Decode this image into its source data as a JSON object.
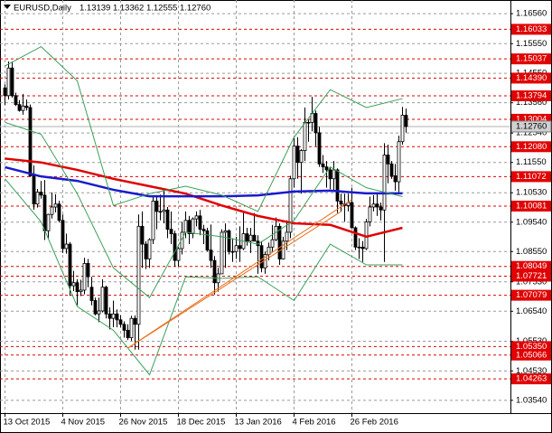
{
  "chart_data": {
    "type": "candlestick",
    "title": "EURUSD,Daily",
    "subtitle": "1.13139 1.13362 1.12555 1.12760",
    "categories": [
      "13 Oct 2015",
      null,
      null,
      null,
      null,
      null,
      null,
      null,
      null,
      null,
      null,
      null,
      null,
      null,
      null,
      null,
      "4 Nov 2015",
      null,
      null,
      null,
      null,
      null,
      null,
      null,
      null,
      null,
      null,
      null,
      null,
      null,
      null,
      null,
      "26 Nov 2015",
      null,
      null,
      null,
      null,
      null,
      null,
      null,
      null,
      null,
      null,
      null,
      null,
      null,
      null,
      null,
      "18 Dec 2015",
      null,
      null,
      null,
      null,
      null,
      null,
      null,
      null,
      null,
      null,
      null,
      null,
      null,
      null,
      null,
      "13 Jan 2016",
      null,
      null,
      null,
      null,
      null,
      null,
      null,
      null,
      null,
      null,
      null,
      null,
      null,
      null,
      null,
      "4 Feb 2016",
      null,
      null,
      null,
      null,
      null,
      null,
      null,
      null,
      null,
      null,
      null,
      null,
      null,
      null,
      null,
      "26 Feb 2016",
      null,
      null,
      null,
      null,
      null,
      null,
      null,
      null,
      null,
      null,
      null,
      null,
      null,
      null,
      null
    ],
    "open": [
      1.1406,
      1.138,
      1.1473,
      1.138,
      1.135,
      1.133,
      1.1345,
      1.134,
      1.111,
      1.1015,
      1.1055,
      1.1045,
      1.0925,
      1.098,
      1.1005,
      1.1015,
      1.096,
      1.0865,
      1.088,
      1.074,
      1.075,
      1.072,
      1.0725,
      1.0815,
      1.0735,
      1.069,
      1.0645,
      1.0655,
      1.0735,
      1.0645,
      1.063,
      1.0645,
      1.0625,
      1.061,
      1.059,
      1.0565,
      1.063,
      1.061,
      1.094,
      1.088,
      1.083,
      1.0895,
      1.1025,
      1.099,
      1.099,
      1.0995,
      1.093,
      1.0915,
      1.0825,
      1.0865,
      1.092,
      1.096,
      1.0915,
      1.0965,
      1.0975,
      1.093,
      1.0925,
      1.086,
      1.0825,
      1.075,
      1.078,
      1.092,
      1.0925,
      1.0855,
      1.0855,
      1.0875,
      1.0865,
      1.0915,
      1.089,
      1.091,
      1.089,
      1.0875,
      1.08,
      1.0845,
      1.087,
      1.0895,
      1.094,
      1.083,
      1.089,
      1.092,
      1.11,
      1.121,
      1.1155,
      1.1195,
      1.129,
      1.129,
      1.132,
      1.1255,
      1.115,
      1.114,
      1.113,
      1.11,
      1.113,
      1.1025,
      1.1015,
      1.101,
      1.102,
      1.0935,
      1.087,
      1.087,
      1.0865,
      1.0955,
      1.1005,
      1.1015,
      1.1005,
      1.0995,
      1.118,
      1.115,
      1.111,
      1.109,
      1.1225,
      1.13139
    ],
    "high": [
      1.1418,
      1.1495,
      1.1495,
      1.139,
      1.1365,
      1.1386,
      1.1367,
      1.135,
      1.1145,
      1.1066,
      1.1093,
      1.1096,
      1.0982,
      1.1054,
      1.1048,
      1.1026,
      1.098,
      1.0915,
      1.0887,
      1.079,
      1.0762,
      1.076,
      1.0834,
      1.083,
      1.077,
      1.07,
      1.07,
      1.0762,
      1.074,
      1.0667,
      1.069,
      1.066,
      1.064,
      1.062,
      1.061,
      1.0639,
      1.064,
      1.098,
      1.099,
      1.089,
      1.09,
      1.104,
      1.1045,
      1.1047,
      1.106,
      1.1005,
      1.099,
      1.0925,
      1.087,
      1.0955,
      1.099,
      1.0975,
      1.097,
      1.099,
      1.0995,
      1.0945,
      1.0935,
      1.0946,
      1.084,
      1.08,
      1.093,
      1.095,
      1.093,
      1.09,
      1.0905,
      1.094,
      1.0985,
      1.0935,
      1.0935,
      1.0985,
      1.091,
      1.089,
      1.0855,
      1.0885,
      1.0945,
      1.097,
      1.095,
      1.0905,
      1.096,
      1.111,
      1.124,
      1.124,
      1.12,
      1.134,
      1.13,
      1.1376,
      1.133,
      1.1275,
      1.118,
      1.116,
      1.114,
      1.116,
      1.1135,
      1.105,
      1.105,
      1.105,
      1.107,
      1.094,
      1.09,
      1.089,
      1.0965,
      1.104,
      1.1045,
      1.1055,
      1.102,
      1.122,
      1.1215,
      1.116,
      1.115,
      1.1245,
      1.1342,
      1.13362
    ],
    "low": [
      1.1349,
      1.1367,
      1.1373,
      1.1345,
      1.1326,
      1.1316,
      1.133,
      1.1106,
      1.0996,
      1.1003,
      1.1033,
      1.0894,
      1.0897,
      1.0966,
      1.0987,
      1.0953,
      1.085,
      1.0848,
      1.0706,
      1.0722,
      1.0674,
      1.0705,
      1.0711,
      1.0735,
      1.0674,
      1.064,
      1.0617,
      1.065,
      1.063,
      1.0593,
      1.06,
      1.06,
      1.06,
      1.0565,
      1.0557,
      1.0555,
      1.0525,
      1.0525,
      1.08,
      1.0796,
      1.08,
      1.088,
      1.093,
      1.096,
      1.095,
      1.09,
      1.088,
      1.0805,
      1.0805,
      1.0845,
      1.09,
      1.088,
      1.09,
      1.094,
      1.091,
      1.088,
      1.0855,
      1.08,
      1.071,
      1.072,
      1.078,
      1.08,
      1.0845,
      1.082,
      1.083,
      1.082,
      1.086,
      1.0875,
      1.085,
      1.089,
      1.078,
      1.0785,
      1.078,
      1.0825,
      1.0855,
      1.089,
      1.081,
      1.0828,
      1.086,
      1.09,
      1.107,
      1.11,
      1.105,
      1.116,
      1.1225,
      1.126,
      1.121,
      1.114,
      1.112,
      1.107,
      1.1065,
      1.106,
      1.0985,
      1.099,
      1.0955,
      1.099,
      1.0935,
      1.086,
      1.083,
      1.082,
      1.086,
      1.094,
      1.099,
      1.0975,
      1.096,
      1.082,
      1.1085,
      1.11,
      1.106,
      1.1055,
      1.1215,
      1.12555
    ],
    "close": [
      1.138,
      1.1473,
      1.138,
      1.135,
      1.133,
      1.1345,
      1.134,
      1.111,
      1.1015,
      1.1055,
      1.1045,
      1.0925,
      1.098,
      1.1005,
      1.1015,
      1.096,
      1.0865,
      1.088,
      1.074,
      1.075,
      1.072,
      1.0725,
      1.0815,
      1.077,
      1.069,
      1.0645,
      1.0655,
      1.0735,
      1.0645,
      1.063,
      1.0645,
      1.0625,
      1.061,
      1.059,
      1.0565,
      1.063,
      1.061,
      1.094,
      1.088,
      1.083,
      1.0895,
      1.1025,
      1.099,
      1.099,
      1.0995,
      1.093,
      1.0915,
      1.0825,
      1.0865,
      1.092,
      1.096,
      1.0915,
      1.0965,
      1.0975,
      1.093,
      1.0925,
      1.086,
      1.0825,
      1.075,
      1.078,
      1.092,
      1.0925,
      1.0855,
      1.0855,
      1.0875,
      1.0865,
      1.0915,
      1.089,
      1.091,
      1.089,
      1.0875,
      1.08,
      1.0845,
      1.087,
      1.0895,
      1.094,
      1.083,
      1.089,
      1.092,
      1.11,
      1.121,
      1.1155,
      1.1195,
      1.129,
      1.129,
      1.132,
      1.1255,
      1.115,
      1.114,
      1.113,
      1.11,
      1.113,
      1.1025,
      1.1015,
      1.101,
      1.102,
      1.0935,
      1.087,
      1.087,
      1.0865,
      1.0955,
      1.1005,
      1.1015,
      1.1005,
      1.0995,
      1.118,
      1.115,
      1.111,
      1.109,
      1.1225,
      1.1314,
      1.1276
    ],
    "colors": {
      "up": "#ffffff",
      "down": "#000000",
      "outline": "#000000"
    },
    "indicators": [
      {
        "color": "#e00000",
        "width": 2.5,
        "x": [
          0,
          10,
          20,
          30,
          40,
          50,
          60,
          70,
          80,
          90,
          100,
          110
        ],
        "values": [
          1.1168,
          1.1155,
          1.113,
          1.11,
          1.1075,
          1.105,
          1.101,
          1.0975,
          1.095,
          1.0945,
          1.0905,
          1.0935
        ]
      },
      {
        "color": "#1a1acc",
        "width": 2.5,
        "x": [
          0,
          10,
          20,
          30,
          40,
          50,
          60,
          70,
          80,
          90,
          100,
          110
        ],
        "values": [
          1.1139,
          1.1108,
          1.1093,
          1.1063,
          1.1041,
          1.1041,
          1.1041,
          1.1044,
          1.1057,
          1.106,
          1.1051,
          1.1051
        ]
      },
      {
        "color": "#3aa05a",
        "width": 1,
        "x": [
          0,
          10,
          20,
          30,
          40,
          50,
          60,
          70,
          80,
          90,
          100,
          110
        ],
        "values": [
          1.148,
          1.1545,
          1.143,
          1.101,
          1.105,
          1.1075,
          1.1045,
          1.099,
          1.124,
          1.14,
          1.134,
          1.137
        ]
      },
      {
        "color": "#3aa05a",
        "width": 1,
        "x": [
          0,
          10,
          20,
          30,
          40,
          50,
          60,
          70,
          80,
          90,
          100,
          110
        ],
        "values": [
          1.129,
          1.125,
          1.105,
          1.08,
          1.07,
          1.092,
          1.0905,
          1.088,
          1.096,
          1.114,
          1.107,
          1.104
        ]
      },
      {
        "color": "#3aa05a",
        "width": 1,
        "x": [
          0,
          10,
          20,
          30,
          40,
          50,
          60,
          70,
          80,
          90,
          100,
          110
        ],
        "values": [
          1.11,
          1.0955,
          1.067,
          1.059,
          1.044,
          1.077,
          1.0765,
          1.077,
          1.069,
          1.088,
          1.081,
          1.081
        ]
      }
    ],
    "trendlines": [
      {
        "color": "#e87020",
        "x": [
          34,
          93
        ],
        "values": [
          1.053,
          1.099
        ]
      },
      {
        "color": "#e87020",
        "x": [
          34,
          96
        ],
        "values": [
          1.053,
          1.103
        ]
      }
    ],
    "levels": [
      1.16033,
      1.15037,
      {
        "value": 1.1439,
        "label": "1.14390"
      },
      1.13794,
      1.13004,
      {
        "value": 1.1208,
        "label": "1.12080"
      },
      1.11072,
      1.10081,
      1.08049,
      1.07721,
      1.07079,
      {
        "value": 1.0535,
        "label": "1.05350"
      },
      1.05066,
      1.04263
    ],
    "level_color": "#e00000",
    "last_price": {
      "value": 1.1276,
      "label": "1.12760"
    },
    "ylim": [
      1.0311,
      1.1702
    ],
    "yticks": [
      {
        "value": 1.1656,
        "label": "1.16560"
      },
      {
        "value": 1.1555,
        "label": "1.15550"
      },
      {
        "value": 1.1455,
        "label": "1.14550"
      },
      {
        "value": 1.1356,
        "label": "1.13560"
      },
      {
        "value": 1.1254,
        "label": "1.12540"
      },
      {
        "value": 1.1155,
        "label": "1.11550"
      },
      {
        "value": 1.1053,
        "label": "1.10530"
      },
      {
        "value": 1.0954,
        "label": "1.09540"
      },
      {
        "value": 1.0855,
        "label": "1.08550"
      },
      {
        "value": 1.0753,
        "label": "1.07530"
      },
      {
        "value": 1.0654,
        "label": "1.06540"
      },
      {
        "value": 1.0553,
        "label": "1.05530"
      },
      {
        "value": 1.0453,
        "label": "1.04530"
      },
      {
        "value": 1.0354,
        "label": "1.03540"
      }
    ],
    "grid": true
  }
}
